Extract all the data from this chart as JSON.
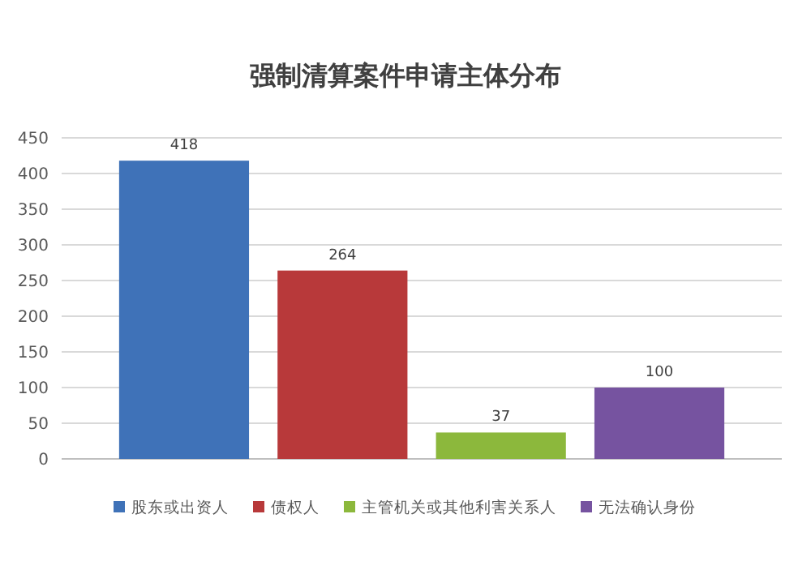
{
  "chart_data": {
    "type": "bar",
    "title": "强制清算案件申请主体分布",
    "categories": [
      null
    ],
    "series": [
      {
        "name": "股东或出资人",
        "color": "#3f72b8",
        "values": [
          418
        ]
      },
      {
        "name": "债权人",
        "color": "#b8393a",
        "values": [
          264
        ]
      },
      {
        "name": "主管机关或其他利害关系人",
        "color": "#8cb83c",
        "values": [
          37
        ]
      },
      {
        "name": "无法确认身份",
        "color": "#7653a0",
        "values": [
          100
        ]
      }
    ],
    "ylim": [
      0,
      450
    ],
    "yticks": [
      0,
      50,
      100,
      150,
      200,
      250,
      300,
      350,
      400,
      450
    ],
    "grid": "y",
    "legend": "bottom",
    "data_labels": true
  }
}
